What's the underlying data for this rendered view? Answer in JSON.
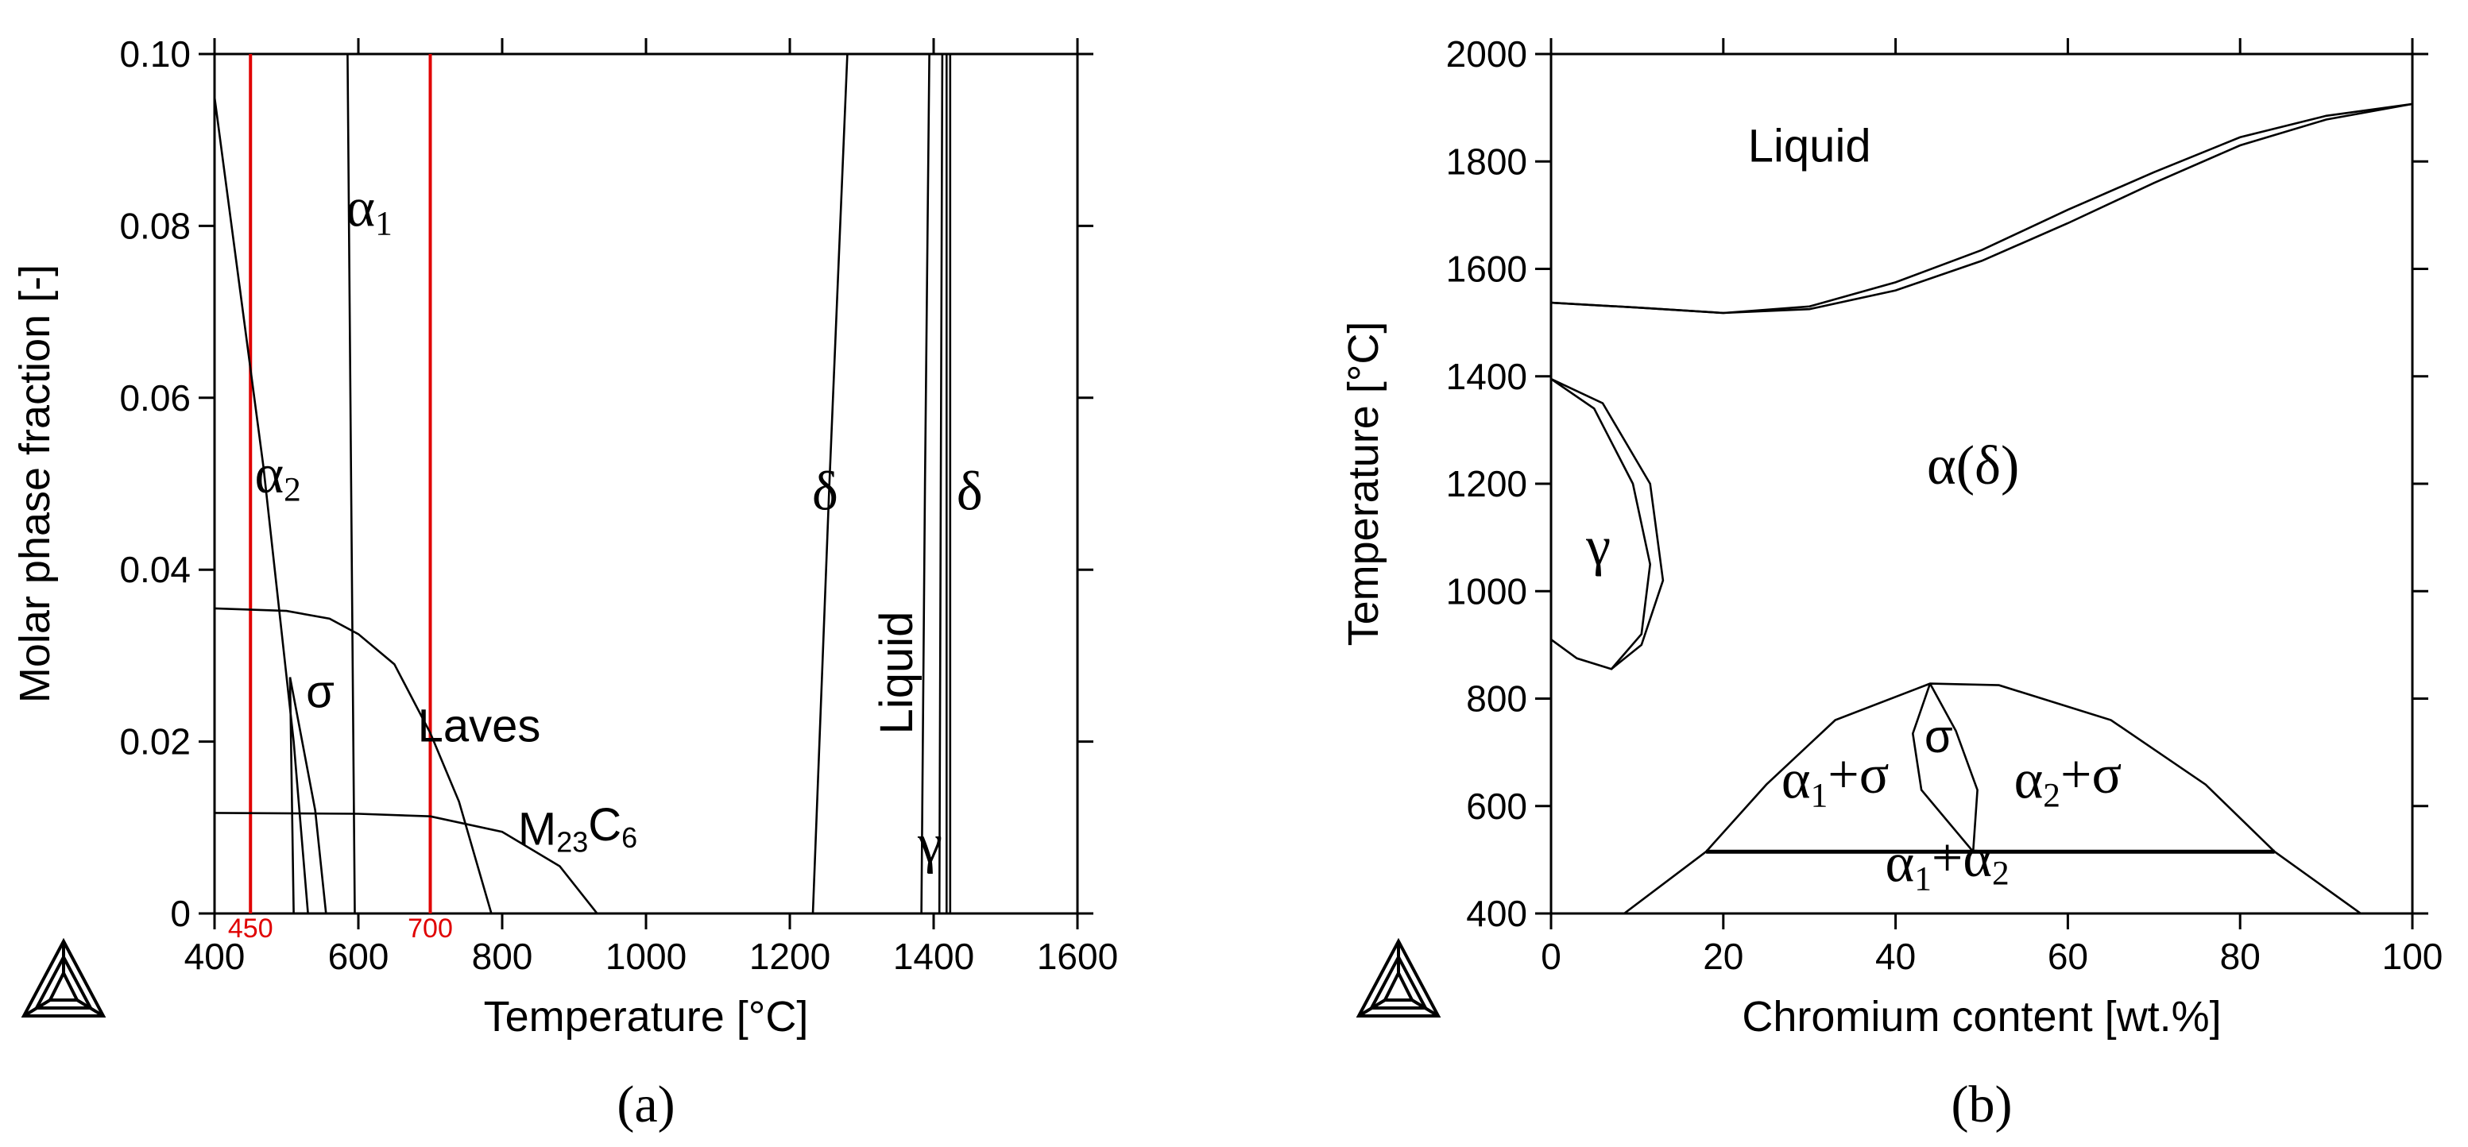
{
  "chart_data": [
    {
      "type": "line",
      "panel_label": "(a)",
      "xlabel": "Temperature [°C]",
      "ylabel": "Molar phase fraction [-]",
      "xlim": [
        400,
        1600
      ],
      "ylim": [
        0,
        0.1
      ],
      "xticks": [
        400,
        600,
        800,
        1000,
        1200,
        1400,
        1600
      ],
      "yticks": [
        0,
        0.02,
        0.04,
        0.06,
        0.08,
        0.1
      ],
      "xtick_labels": [
        "400",
        "600",
        "800",
        "1000",
        "1200",
        "1400",
        "1600"
      ],
      "ytick_labels": [
        "0",
        "0.02",
        "0.04",
        "0.06",
        "0.08",
        "0.10"
      ],
      "grid": false,
      "markers": [
        {
          "x": 450,
          "label": "450",
          "color": "#e00000"
        },
        {
          "x": 700,
          "label": "700",
          "color": "#e00000"
        }
      ],
      "curves": [
        {
          "points": [
            [
              400,
              0.095
            ],
            [
              468,
              0.052
            ],
            [
              510,
              0.02
            ],
            [
              530,
              0
            ]
          ]
        },
        {
          "points": [
            [
              400,
              0.0355
            ],
            [
              500,
              0.0352
            ],
            [
              560,
              0.0343
            ],
            [
              600,
              0.0325
            ],
            [
              650,
              0.029
            ],
            [
              700,
              0.021
            ],
            [
              740,
              0.013
            ],
            [
              785,
              0
            ]
          ]
        },
        {
          "points": [
            [
              400,
              0.0117
            ],
            [
              600,
              0.0116
            ],
            [
              700,
              0.0113
            ],
            [
              800,
              0.0095
            ],
            [
              880,
              0.0055
            ],
            [
              932,
              0
            ]
          ]
        },
        {
          "points": [
            [
              585,
              0.1
            ],
            [
              590,
              0.05
            ],
            [
              595,
              0
            ]
          ]
        },
        {
          "points": [
            [
              505,
              0.0275
            ],
            [
              510,
              0
            ]
          ]
        },
        {
          "points": [
            [
              505,
              0.0275
            ],
            [
              540,
              0.012
            ],
            [
              555,
              0
            ]
          ]
        },
        {
          "points": [
            [
              1280,
              0.1
            ],
            [
              1255,
              0.05
            ],
            [
              1232,
              0
            ]
          ]
        },
        {
          "points": [
            [
              1394,
              0.1
            ],
            [
              1388,
              0.05
            ],
            [
              1383,
              0
            ]
          ]
        },
        {
          "points": [
            [
              1412,
              0.1
            ],
            [
              1410,
              0.05
            ],
            [
              1408,
              0
            ]
          ]
        },
        {
          "points": [
            [
              1418,
              0.1
            ],
            [
              1418,
              0
            ]
          ]
        },
        {
          "points": [
            [
              1423,
              0.1
            ],
            [
              1423,
              0
            ]
          ]
        }
      ],
      "annotations": [
        {
          "text": "α₁",
          "x": 615,
          "y": 0.08
        },
        {
          "text": "α₂",
          "x": 488,
          "y": 0.049
        },
        {
          "text": "σ",
          "x": 547,
          "y": 0.024
        },
        {
          "text": "Laves",
          "x": 768,
          "y": 0.02
        },
        {
          "text": "M₂₃C₆",
          "x": 905,
          "y": 0.008
        },
        {
          "text": "δ",
          "x": 1249,
          "y": 0.047
        },
        {
          "text": "δ",
          "x": 1450,
          "y": 0.047
        },
        {
          "text": "Liquid",
          "x": 1370,
          "y": 0.028
        },
        {
          "text": "γ",
          "x": 1395,
          "y": 0.006
        }
      ]
    },
    {
      "type": "line",
      "panel_label": "(b)",
      "xlabel": "Chromium content [wt.%]",
      "ylabel": "Temperature [°C]",
      "xlim": [
        0,
        100
      ],
      "ylim": [
        400,
        2000
      ],
      "xticks": [
        0,
        20,
        40,
        60,
        80,
        100
      ],
      "yticks": [
        400,
        600,
        800,
        1000,
        1200,
        1400,
        1600,
        1800,
        2000
      ],
      "xtick_labels": [
        "0",
        "20",
        "40",
        "60",
        "80",
        "100"
      ],
      "ytick_labels": [
        "400",
        "600",
        "800",
        "1000",
        "1200",
        "1400",
        "1600",
        "1800",
        "2000"
      ],
      "grid": false,
      "curves": [
        {
          "points": [
            [
              0,
              1537
            ],
            [
              10,
              1528
            ],
            [
              20,
              1518
            ],
            [
              30,
              1525
            ],
            [
              40,
              1560
            ],
            [
              50,
              1615
            ],
            [
              60,
              1685
            ],
            [
              70,
              1760
            ],
            [
              80,
              1830
            ],
            [
              90,
              1878
            ],
            [
              100,
              1907
            ]
          ]
        },
        {
          "points": [
            [
              0,
              1537
            ],
            [
              10,
              1528
            ],
            [
              20,
              1518
            ],
            [
              30,
              1530
            ],
            [
              40,
              1575
            ],
            [
              50,
              1635
            ],
            [
              60,
              1710
            ],
            [
              70,
              1780
            ],
            [
              80,
              1845
            ],
            [
              90,
              1885
            ],
            [
              100,
              1907
            ]
          ]
        },
        {
          "points": [
            [
              0,
              1395
            ],
            [
              5,
              1340
            ],
            [
              9.5,
              1200
            ],
            [
              11.5,
              1050
            ],
            [
              10.5,
              920
            ],
            [
              7,
              855
            ],
            [
              3,
              875
            ],
            [
              0,
              910
            ]
          ]
        },
        {
          "points": [
            [
              0,
              1395
            ],
            [
              6,
              1350
            ],
            [
              11.5,
              1200
            ],
            [
              13,
              1020
            ],
            [
              10.5,
              900
            ],
            [
              7,
              855
            ]
          ]
        },
        {
          "points": [
            [
              18,
              515
            ],
            [
              25,
              640
            ],
            [
              33,
              760
            ],
            [
              44,
              828
            ],
            [
              52,
              825
            ],
            [
              65,
              760
            ],
            [
              76,
              640
            ],
            [
              84,
              515
            ]
          ]
        },
        {
          "points": [
            [
              44,
              828
            ],
            [
              42,
              735
            ],
            [
              43,
              630
            ],
            [
              49,
              515
            ]
          ]
        },
        {
          "points": [
            [
              44,
              828
            ],
            [
              47,
              740
            ],
            [
              49.5,
              630
            ],
            [
              49,
              515
            ]
          ]
        },
        {
          "points": [
            [
              8.5,
              400
            ],
            [
              18,
              515
            ],
            [
              49,
              515
            ],
            [
              84,
              515
            ],
            [
              94,
              400
            ]
          ],
          "bold_segment": [
            [
              18,
              515
            ],
            [
              84,
              515
            ]
          ]
        }
      ],
      "annotations": [
        {
          "text": "Liquid",
          "x": 30,
          "y": 1800
        },
        {
          "text": "α(δ)",
          "x": 49,
          "y": 1200
        },
        {
          "text": "γ",
          "x": 5.5,
          "y": 1050
        },
        {
          "text": "σ",
          "x": 45,
          "y": 700
        },
        {
          "text": "α₁+σ",
          "x": 33,
          "y": 615
        },
        {
          "text": "α₂+σ",
          "x": 60,
          "y": 615
        },
        {
          "text": "α₁+α₂",
          "x": 46,
          "y": 460
        }
      ]
    }
  ]
}
